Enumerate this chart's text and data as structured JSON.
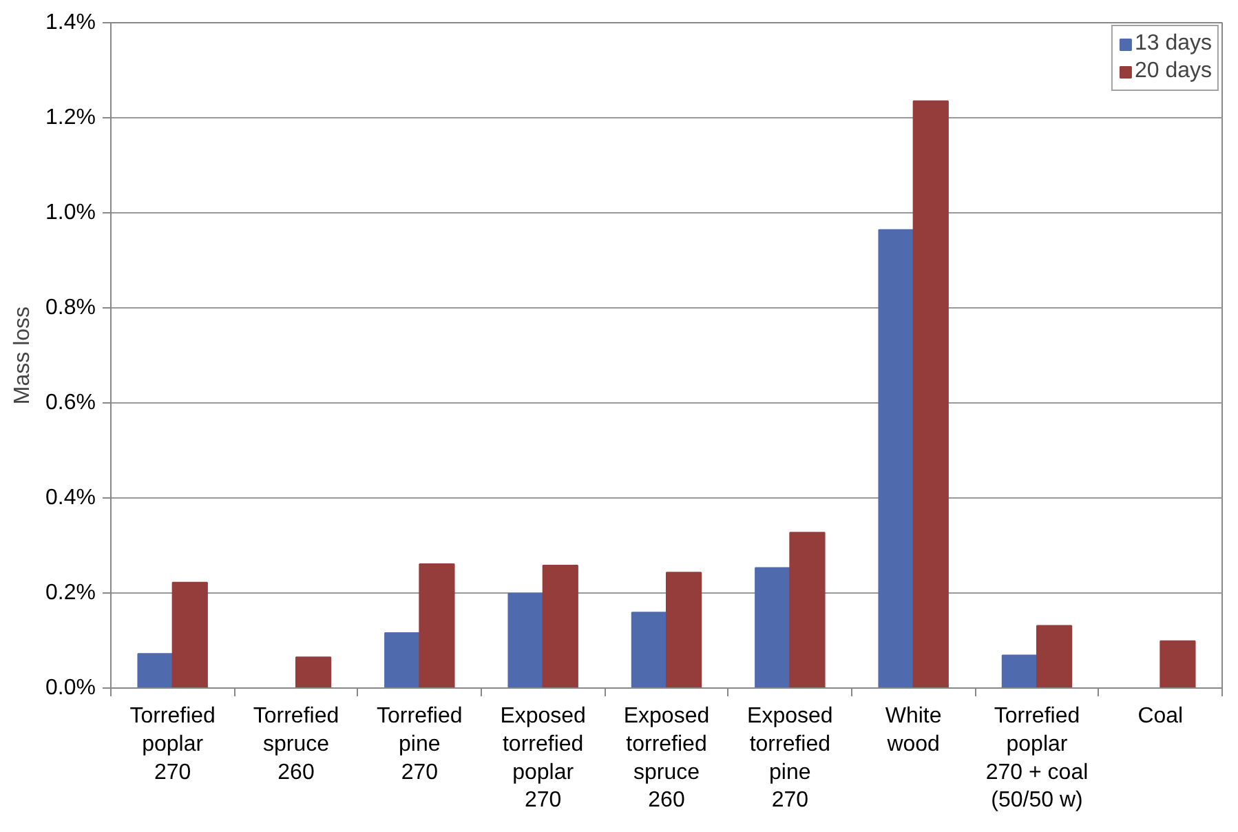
{
  "chart_data": {
    "type": "bar",
    "ylabel": "Mass loss",
    "categories": [
      "Torrefied\npoplar\n270",
      "Torrefied\nspruce\n260",
      "Torrefied\npine\n270",
      "Exposed\ntorrefied\npoplar\n270",
      "Exposed\ntorrefied\nspruce\n260",
      "Exposed\ntorrefied\npine\n270",
      "White\nwood",
      "Torrefied\npoplar\n270 + coal\n(50/50 w)",
      "Coal"
    ],
    "series": [
      {
        "name": "13 days",
        "color": "#4f6aad",
        "values": [
          0.072,
          null,
          0.116,
          0.199,
          0.159,
          0.253,
          0.964,
          0.069,
          null
        ]
      },
      {
        "name": "20 days",
        "color": "#943d3b",
        "values": [
          0.222,
          0.065,
          0.261,
          0.258,
          0.243,
          0.327,
          1.235,
          0.131,
          0.099
        ]
      }
    ],
    "ylim": [
      0,
      1.4
    ],
    "yticks": [
      {
        "value": 0,
        "label": "0.0%"
      },
      {
        "value": 0.2,
        "label": "0.2%"
      },
      {
        "value": 0.4,
        "label": "0.4%"
      },
      {
        "value": 0.6,
        "label": "0.6%"
      },
      {
        "value": 0.8,
        "label": "0.8%"
      },
      {
        "value": 1.0,
        "label": "1.0%"
      },
      {
        "value": 1.2,
        "label": "1.2%"
      },
      {
        "value": 1.4,
        "label": "1.4%"
      }
    ],
    "grid": "y",
    "legend": "top right"
  }
}
